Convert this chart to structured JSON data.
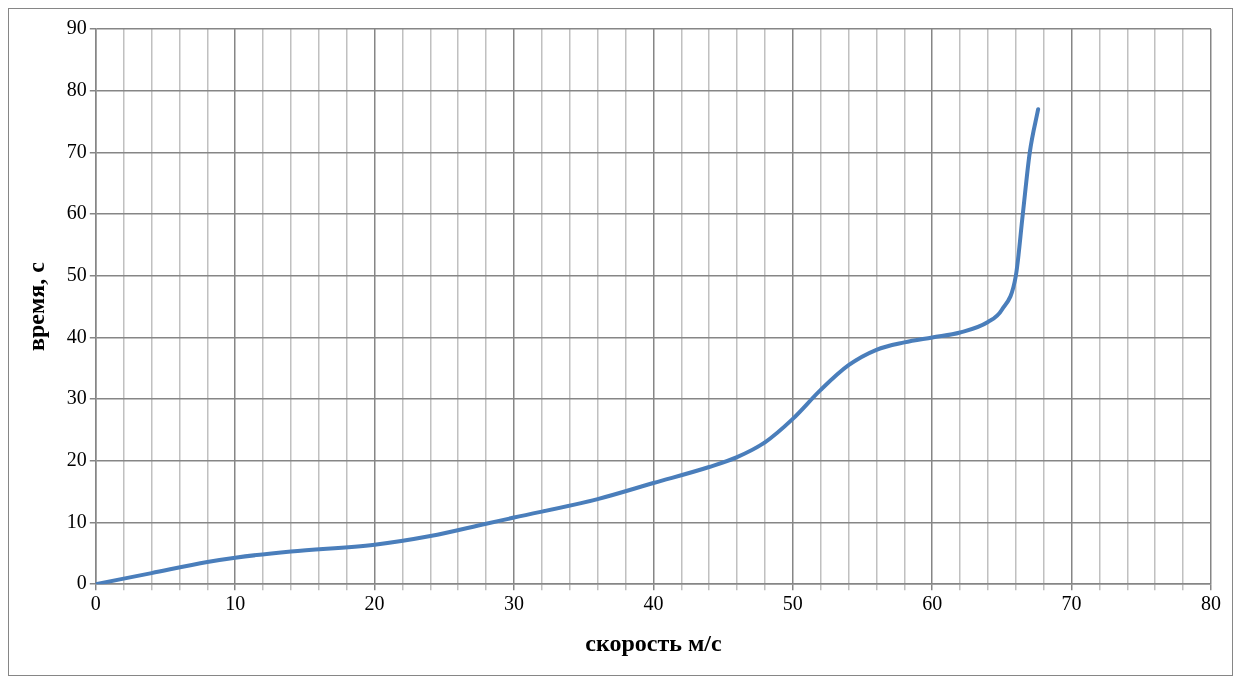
{
  "chart_data": {
    "type": "line",
    "xlabel": "скорость м/с",
    "ylabel": "время, с",
    "x": [
      0,
      4,
      8,
      10,
      14,
      20,
      24,
      28,
      30,
      36,
      40,
      44,
      46,
      48,
      50,
      52,
      54,
      56,
      58,
      60,
      62,
      64,
      65,
      66,
      66.5,
      67,
      67.6
    ],
    "series": [
      {
        "color": "#4a7ebb",
        "values": [
          0,
          1.8,
          3.6,
          4.3,
          5.3,
          6.4,
          7.8,
          9.8,
          10.8,
          13.8,
          16.4,
          19,
          20.6,
          23,
          26.8,
          31.5,
          35.5,
          38,
          39.2,
          40,
          40.8,
          42.5,
          44.5,
          50,
          60,
          70,
          77
        ]
      }
    ],
    "xlim": [
      0,
      80
    ],
    "xticks": [
      0,
      {
        "value": 2,
        "label": null
      },
      {
        "value": 4,
        "label": null
      },
      {
        "value": 6,
        "label": null
      },
      {
        "value": 8,
        "label": null
      },
      10,
      {
        "value": 12,
        "label": null
      },
      {
        "value": 14,
        "label": null
      },
      {
        "value": 16,
        "label": null
      },
      {
        "value": 18,
        "label": null
      },
      20,
      {
        "value": 22,
        "label": null
      },
      {
        "value": 24,
        "label": null
      },
      {
        "value": 26,
        "label": null
      },
      {
        "value": 28,
        "label": null
      },
      30,
      {
        "value": 32,
        "label": null
      },
      {
        "value": 34,
        "label": null
      },
      {
        "value": 36,
        "label": null
      },
      {
        "value": 38,
        "label": null
      },
      40,
      {
        "value": 42,
        "label": null
      },
      {
        "value": 44,
        "label": null
      },
      {
        "value": 46,
        "label": null
      },
      {
        "value": 48,
        "label": null
      },
      50,
      {
        "value": 52,
        "label": null
      },
      {
        "value": 54,
        "label": null
      },
      {
        "value": 56,
        "label": null
      },
      {
        "value": 58,
        "label": null
      },
      60,
      {
        "value": 62,
        "label": null
      },
      {
        "value": 64,
        "label": null
      },
      {
        "value": 66,
        "label": null
      },
      {
        "value": 68,
        "label": null
      },
      70,
      {
        "value": 72,
        "label": null
      },
      {
        "value": 74,
        "label": null
      },
      {
        "value": 76,
        "label": null
      },
      {
        "value": 78,
        "label": null
      },
      80
    ],
    "ylim": [
      0,
      90
    ],
    "yticks": [
      0,
      10,
      20,
      30,
      40,
      50,
      60,
      70,
      80,
      90
    ],
    "grid": true,
    "legend": false,
    "marker": "none",
    "line_style": "solid"
  }
}
